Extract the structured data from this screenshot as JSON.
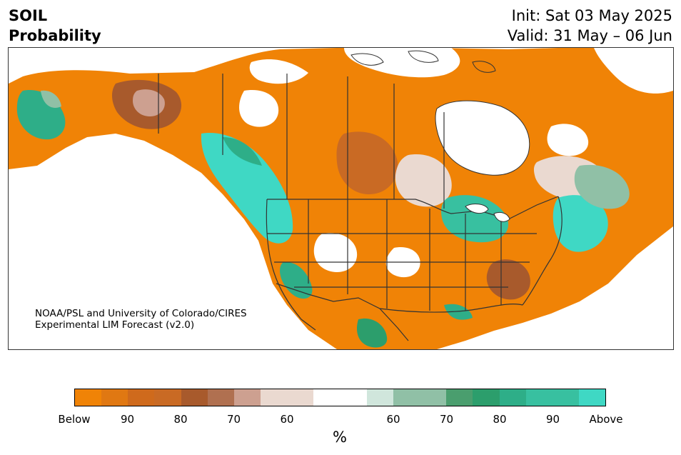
{
  "header": {
    "variable": "SOIL",
    "metric": "Probability",
    "init": "Init: Sat 03 May 2025",
    "valid": "Valid: 31 May – 06 Jun"
  },
  "credit": {
    "line1": "NOAA/PSL and University of Colorado/CIRES",
    "line2": "Experimental LIM Forecast (v2.0)"
  },
  "colorbar": {
    "colors": [
      "#f08306",
      "#e07812",
      "#cf6a1c",
      "#c96a24",
      "#a85a2c",
      "#b07050",
      "#cda090",
      "#ead9d0",
      "#ead9d0",
      "#ffffff",
      "#ffffff",
      "#d0e6dc",
      "#90c0a6",
      "#90c0a6",
      "#4a9e6e",
      "#2c9e6c",
      "#2eae88",
      "#38c0a0",
      "#38c0a0",
      "#3fd8c4"
    ],
    "tick_labels": [
      "Below",
      "90",
      "80",
      "70",
      "60",
      "60",
      "70",
      "80",
      "90",
      "Above"
    ],
    "unit": "%"
  },
  "colors": {
    "below": "#f08306",
    "above": "#3fd8c4",
    "neutral": "#ffffff",
    "border": "#333333"
  }
}
